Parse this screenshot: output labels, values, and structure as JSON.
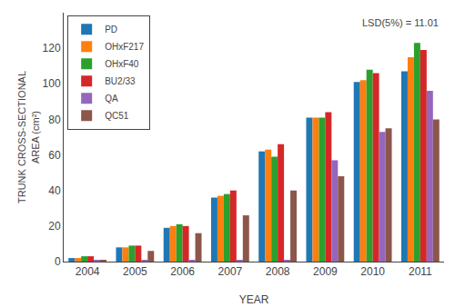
{
  "chart_data": {
    "type": "bar",
    "categories": [
      "2004",
      "2005",
      "2006",
      "2007",
      "2008",
      "2009",
      "2010",
      "2011"
    ],
    "series": [
      {
        "name": "PD",
        "values": [
          2,
          8,
          19,
          36,
          62,
          81,
          101,
          107
        ]
      },
      {
        "name": "OHxF217",
        "values": [
          2,
          8,
          20,
          37,
          63,
          81,
          102,
          115
        ]
      },
      {
        "name": "OHxF40",
        "values": [
          3,
          9,
          21,
          38,
          59,
          81,
          108,
          123
        ]
      },
      {
        "name": "BU2/33",
        "values": [
          3,
          9,
          20,
          40,
          66,
          84,
          106,
          119
        ]
      },
      {
        "name": "QA",
        "values": [
          1,
          1,
          1,
          1,
          1,
          57,
          73,
          96
        ]
      },
      {
        "name": "QC51",
        "values": [
          1,
          6,
          16,
          26,
          40,
          48,
          75,
          80
        ]
      }
    ],
    "xlabel": "YEAR",
    "ylabel": "TRUNK CROSS-SECTIONAL\nAREA (cm²)",
    "annotations": [
      "LSD(5%) = 11.01"
    ],
    "ylim": [
      0,
      140
    ],
    "yticks": [
      0,
      20,
      40,
      60,
      80,
      100,
      120
    ],
    "grid": false,
    "legend": "upper left"
  }
}
